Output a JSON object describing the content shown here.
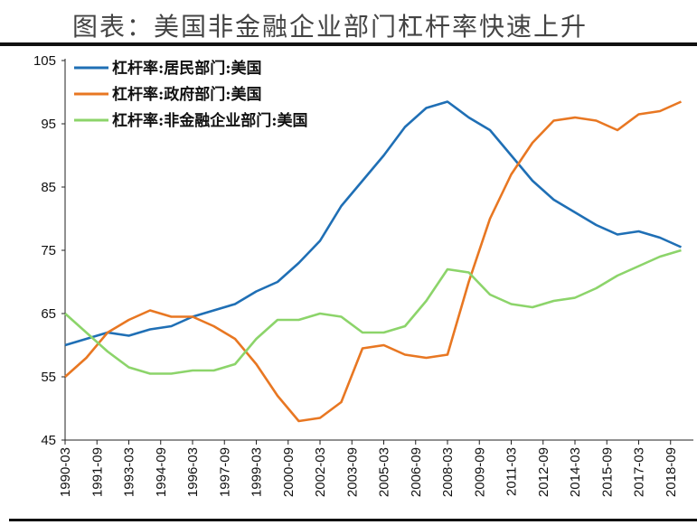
{
  "title": "图表：美国非金融企业部门杠杆率快速上升",
  "chart_data": {
    "type": "line",
    "title": "图表：美国非金融企业部门杠杆率快速上升",
    "xlabel": "",
    "ylabel": "",
    "ylim": [
      45,
      105
    ],
    "yticks": [
      45,
      55,
      65,
      75,
      85,
      95,
      105
    ],
    "xticks": [
      "1990-03",
      "1991-09",
      "1993-03",
      "1994-09",
      "1996-03",
      "1997-09",
      "1999-03",
      "2000-09",
      "2002-03",
      "2003-09",
      "2005-03",
      "2006-09",
      "2008-03",
      "2009-09",
      "2011-03",
      "2012-09",
      "2014-03",
      "2015-09",
      "2017-03",
      "2018-09"
    ],
    "legend_position": "top-left",
    "grid": false,
    "x": [
      "1990-03",
      "1991-03",
      "1992-03",
      "1993-03",
      "1994-03",
      "1995-03",
      "1996-03",
      "1997-03",
      "1998-03",
      "1999-03",
      "2000-03",
      "2001-03",
      "2002-03",
      "2003-03",
      "2004-03",
      "2005-03",
      "2006-03",
      "2007-03",
      "2008-03",
      "2009-03",
      "2010-03",
      "2011-03",
      "2012-03",
      "2013-03",
      "2014-03",
      "2015-03",
      "2016-03",
      "2017-03",
      "2018-03",
      "2019-03"
    ],
    "series": [
      {
        "name": "杠杆率:居民部门:美国",
        "color": "#1f6fb5",
        "values": [
          60,
          61,
          62,
          61.5,
          62.5,
          63,
          64.5,
          65.5,
          66.5,
          68.5,
          70,
          73,
          76.5,
          82,
          86,
          90,
          94.5,
          97.5,
          98.5,
          96,
          94,
          90,
          86,
          83,
          81,
          79,
          77.5,
          78,
          77,
          75.5
        ]
      },
      {
        "name": "杠杆率:政府部门:美国",
        "color": "#e87722",
        "values": [
          55,
          58,
          62,
          64,
          65.5,
          64.5,
          64.5,
          63,
          61,
          57,
          52,
          48,
          48.5,
          51,
          59.5,
          60,
          58.5,
          58,
          58.5,
          70,
          80,
          87,
          92,
          95.5,
          96,
          95.5,
          94,
          96.5,
          97,
          98.5
        ]
      },
      {
        "name": "杠杆率:非金融企业部门:美国",
        "color": "#8cd46a",
        "values": [
          65,
          62,
          59,
          56.5,
          55.5,
          55.5,
          56,
          56,
          57,
          61,
          64,
          64,
          65,
          64.5,
          62,
          62,
          63,
          67,
          72,
          71.5,
          68,
          66.5,
          66,
          67,
          67.5,
          69,
          71,
          72.5,
          74,
          75
        ]
      }
    ]
  }
}
